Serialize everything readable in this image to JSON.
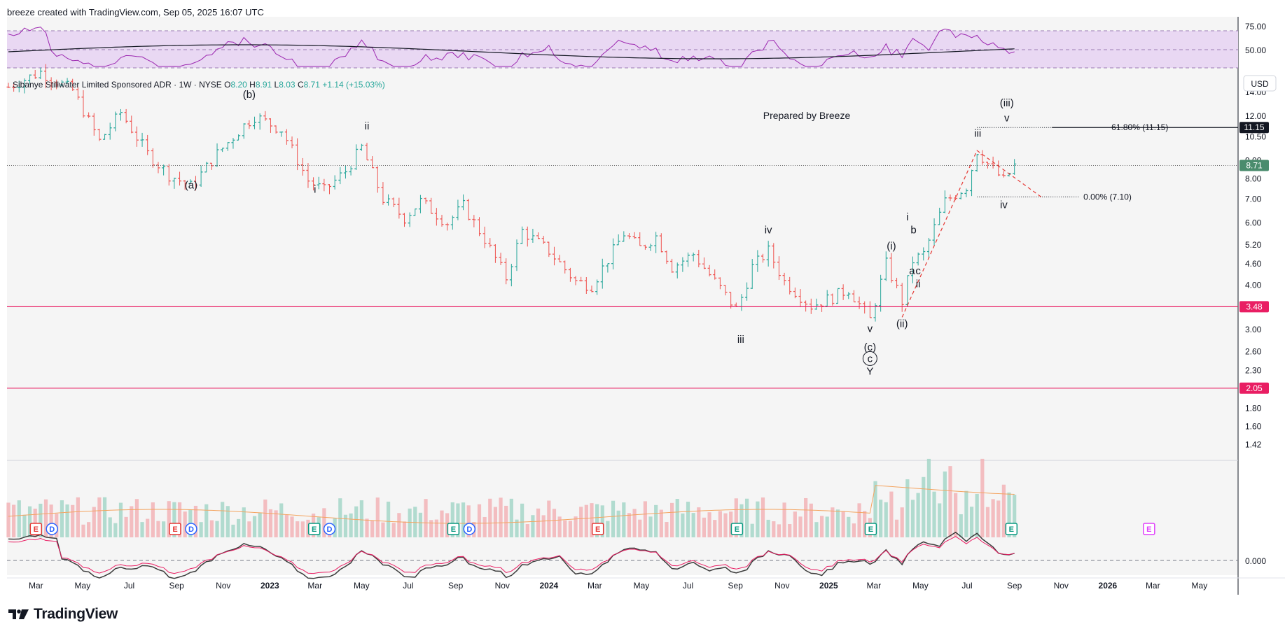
{
  "header": {
    "text": "breeze created with TradingView.com, Sep 05, 2025 16:07 UTC"
  },
  "legend": {
    "symbol": "Sibanye Stillwater Limited Sponsored ADR · 1W · NYSE",
    "o_label": "O",
    "o_value": "8.20",
    "h_label": "H",
    "h_value": "8.91",
    "l_label": "L",
    "l_value": "8.03",
    "c_label": "C",
    "c_value": "8.71",
    "change": "+1.14 (+15.03%)"
  },
  "currency": "USD",
  "watermark": "Prepared by Breeze",
  "brand": {
    "name": "TradingView"
  },
  "colors": {
    "up": "#26a69a",
    "down": "#ef5350",
    "rsi_line": "#9c27b0",
    "rsi_band": "#e9d8f3",
    "level_line": "#e91e63",
    "price_badge": "#4a8c6d",
    "target_badge": "#131722"
  },
  "chart_data": {
    "type": "candlestick",
    "price_axis_ticks": [
      "14.00",
      "12.00",
      "10.50",
      "9.00",
      "8.00",
      "7.00",
      "6.00",
      "5.20",
      "4.60",
      "4.00",
      "3.00",
      "2.60",
      "2.30",
      "1.80",
      "1.60",
      "1.42"
    ],
    "price_axis_scale": "log",
    "rsi_axis_ticks": [
      "75.00",
      "50.00"
    ],
    "osc_axis_ticks": [
      "0.000"
    ],
    "time_axis_ticks": [
      "Mar",
      "May",
      "Jul",
      "Sep",
      "Nov",
      "2023",
      "Mar",
      "May",
      "Jul",
      "Sep",
      "Nov",
      "2024",
      "Mar",
      "May",
      "Jul",
      "Sep",
      "Nov",
      "2025",
      "Mar",
      "May",
      "Jul",
      "Sep",
      "Nov",
      "2026",
      "Mar",
      "May"
    ],
    "current_price": "8.71",
    "horizontal_levels": [
      {
        "value": 3.48,
        "label": "3.48"
      },
      {
        "value": 2.05,
        "label": "2.05"
      }
    ],
    "fib_levels": [
      {
        "value": 11.15,
        "label": "61.80% (11.15)",
        "badge": "11.15"
      },
      {
        "value": 7.1,
        "label": "0.00% (7.10)"
      }
    ],
    "wave_labels": [
      {
        "text": "(a)",
        "date": "2022-09-20",
        "price": 7.5
      },
      {
        "text": "(b)",
        "date": "2022-12-05",
        "price": 13.5
      },
      {
        "text": "ii",
        "date": "2023-05-08",
        "price": 11.0
      },
      {
        "text": "i",
        "date": "2023-03-01",
        "price": 7.3
      },
      {
        "text": "iii",
        "date": "2024-09-08",
        "price": 2.75
      },
      {
        "text": "iv",
        "date": "2024-10-14",
        "price": 5.6
      },
      {
        "text": "v",
        "date": "2025-02-24",
        "price": 2.95
      },
      {
        "text": "(c)",
        "date": "2025-02-24",
        "price": 2.62
      },
      {
        "text": "c",
        "date": "2025-02-24",
        "price": 2.43,
        "circled": true
      },
      {
        "text": "Y",
        "date": "2025-02-24",
        "price": 2.24
      },
      {
        "text": "(i)",
        "date": "2025-03-24",
        "price": 5.05
      },
      {
        "text": "(ii)",
        "date": "2025-04-07",
        "price": 3.05
      },
      {
        "text": "i",
        "date": "2025-04-14",
        "price": 6.1
      },
      {
        "text": "b",
        "date": "2025-04-22",
        "price": 5.6
      },
      {
        "text": "a",
        "date": "2025-04-20",
        "price": 4.3
      },
      {
        "text": "c",
        "date": "2025-04-28",
        "price": 4.3
      },
      {
        "text": "ii",
        "date": "2025-04-28",
        "price": 3.95
      },
      {
        "text": "iii",
        "date": "2025-07-15",
        "price": 10.5
      },
      {
        "text": "iv",
        "date": "2025-08-18",
        "price": 6.6
      },
      {
        "text": "(iii)",
        "date": "2025-08-22",
        "price": 12.8
      },
      {
        "text": "v",
        "date": "2025-08-22",
        "price": 11.6
      }
    ],
    "earnings_markers": [
      {
        "text": "E",
        "kind": "red",
        "date": "2022-03-01"
      },
      {
        "text": "D",
        "kind": "blue",
        "date": "2022-03-22"
      },
      {
        "text": "E",
        "kind": "red",
        "date": "2022-08-30"
      },
      {
        "text": "D",
        "kind": "blue",
        "date": "2022-09-20"
      },
      {
        "text": "E",
        "kind": "green",
        "date": "2023-02-28"
      },
      {
        "text": "D",
        "kind": "blue",
        "date": "2023-03-20"
      },
      {
        "text": "E",
        "kind": "green",
        "date": "2023-08-29"
      },
      {
        "text": "D",
        "kind": "blue",
        "date": "2023-09-19"
      },
      {
        "text": "E",
        "kind": "red",
        "date": "2024-03-05"
      },
      {
        "text": "E",
        "kind": "green",
        "date": "2024-09-03"
      },
      {
        "text": "E",
        "kind": "green",
        "date": "2025-02-25"
      },
      {
        "text": "E",
        "kind": "green",
        "date": "2025-08-28"
      },
      {
        "text": "E",
        "kind": "purple",
        "date": "2026-02-24"
      }
    ]
  }
}
